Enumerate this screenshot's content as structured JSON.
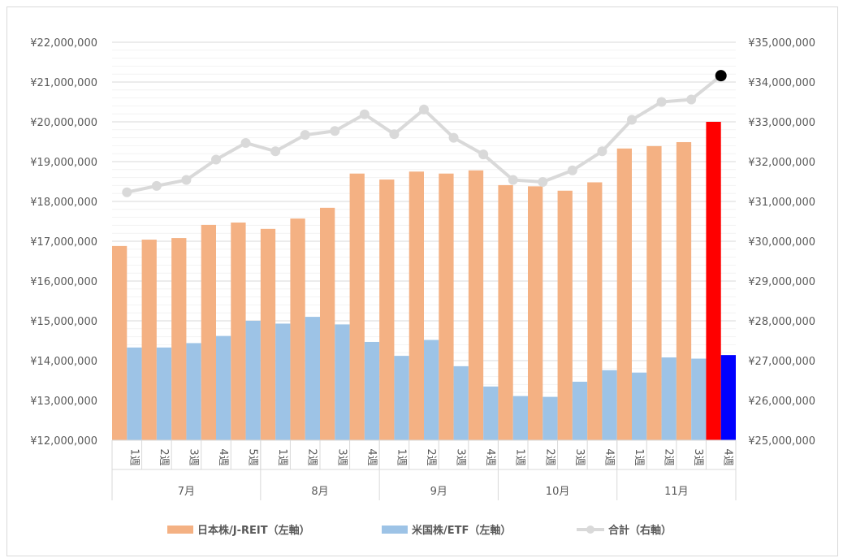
{
  "chart_data": {
    "type": "bar",
    "title": "",
    "categories": [
      "1週",
      "2週",
      "3週",
      "4週",
      "5週",
      "1週",
      "2週",
      "3週",
      "4週",
      "1週",
      "2週",
      "3週",
      "4週",
      "1週",
      "2週",
      "3週",
      "4週",
      "1週",
      "2週",
      "3週",
      "4週"
    ],
    "groups": [
      {
        "label": "7月",
        "count": 5
      },
      {
        "label": "8月",
        "count": 4
      },
      {
        "label": "9月",
        "count": 4
      },
      {
        "label": "10月",
        "count": 4
      },
      {
        "label": "11月",
        "count": 4
      }
    ],
    "y_left": {
      "range": [
        12000000,
        22000000
      ],
      "ticks": [
        "¥12,000,000",
        "¥13,000,000",
        "¥14,000,000",
        "¥15,000,000",
        "¥16,000,000",
        "¥17,000,000",
        "¥18,000,000",
        "¥19,000,000",
        "¥20,000,000",
        "¥21,000,000",
        "¥22,000,000"
      ]
    },
    "y_right": {
      "range": [
        25000000,
        35000000
      ],
      "ticks": [
        "¥25,000,000",
        "¥26,000,000",
        "¥27,000,000",
        "¥28,000,000",
        "¥29,000,000",
        "¥30,000,000",
        "¥31,000,000",
        "¥32,000,000",
        "¥33,000,000",
        "¥34,000,000",
        "¥35,000,000"
      ]
    },
    "series": [
      {
        "name": "日本株/J-REIT（左軸）",
        "type": "bar",
        "axis": "left",
        "color": "#f4b183",
        "highlight_color": "#ff0000",
        "values": [
          16880000,
          17040000,
          17080000,
          17410000,
          17470000,
          17310000,
          17570000,
          17840000,
          18700000,
          18550000,
          18750000,
          18700000,
          18780000,
          18410000,
          18380000,
          18270000,
          18480000,
          19330000,
          19390000,
          19490000,
          20000000
        ]
      },
      {
        "name": "米国株/ETF（左軸）",
        "type": "bar",
        "axis": "left",
        "color": "#9dc3e6",
        "highlight_color": "#0000ff",
        "values": [
          14330000,
          14330000,
          14440000,
          14620000,
          15000000,
          14930000,
          15100000,
          14910000,
          14470000,
          14120000,
          14520000,
          13860000,
          13350000,
          13110000,
          13090000,
          13470000,
          13760000,
          13700000,
          14080000,
          14050000,
          14140000
        ]
      },
      {
        "name": "合計（右軸）",
        "type": "line",
        "axis": "right",
        "color": "#d9d9d9",
        "highlight_color": "#000000",
        "values": [
          31230000,
          31390000,
          31540000,
          32050000,
          32470000,
          32260000,
          32670000,
          32770000,
          33190000,
          32690000,
          33310000,
          32600000,
          32180000,
          31540000,
          31490000,
          31780000,
          32260000,
          33050000,
          33500000,
          33560000,
          34160000
        ]
      }
    ],
    "legend_position": "bottom",
    "grid": true
  }
}
